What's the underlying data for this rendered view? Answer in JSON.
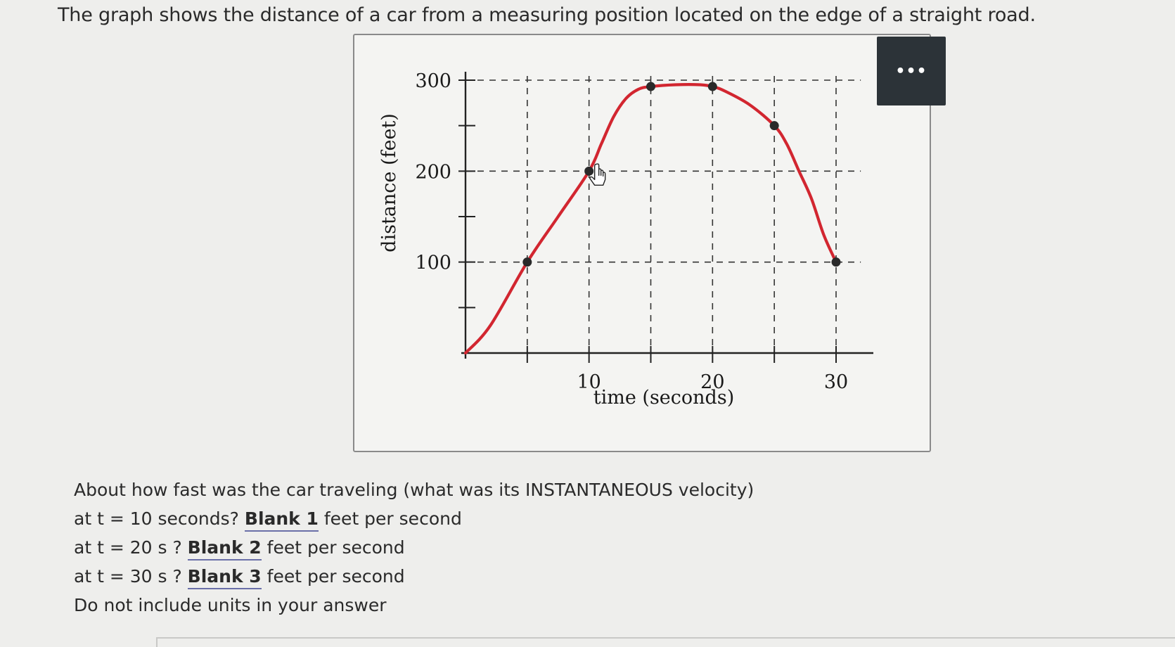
{
  "intro_text": "The graph shows the distance of a car from a measuring position located on the edge of a straight road.",
  "more_button_label": "•••",
  "chart_data": {
    "type": "line",
    "xlabel": "time (seconds)",
    "ylabel": "distance (feet)",
    "x_ticks": [
      5,
      10,
      15,
      20,
      25,
      30
    ],
    "x_tick_labels": [
      "10",
      "20",
      "30"
    ],
    "x_tick_label_values": [
      10,
      20,
      30
    ],
    "y_ticks": [
      50,
      100,
      150,
      200,
      250,
      300
    ],
    "y_tick_labels": [
      "100",
      "200",
      "300"
    ],
    "y_tick_label_values": [
      100,
      200,
      300
    ],
    "xlim": [
      0,
      32
    ],
    "ylim": [
      0,
      300
    ],
    "grid": "dashed",
    "curve_color": "#d22630",
    "curve": {
      "x": [
        0,
        2,
        5,
        7.5,
        10,
        11,
        12,
        13,
        14,
        15,
        17,
        19,
        20,
        21,
        23,
        25,
        26,
        27,
        28,
        29,
        30
      ],
      "y": [
        0,
        30,
        100,
        150,
        200,
        230,
        260,
        280,
        290,
        293,
        295,
        295,
        293,
        288,
        273,
        250,
        230,
        200,
        170,
        130,
        100
      ]
    },
    "marked_points": {
      "x": [
        5,
        10,
        15,
        20,
        25,
        30
      ],
      "y": [
        100,
        200,
        293,
        293,
        250,
        100
      ]
    }
  },
  "questions": {
    "prompt": "About how fast was the car traveling (what was its INSTANTANEOUS velocity)",
    "items": [
      {
        "prefix": "at t = 10 seconds?",
        "blank": "Blank 1",
        "suffix": "feet per second"
      },
      {
        "prefix": "at t = 20 s ?",
        "blank": "Blank 2",
        "suffix": "feet per second"
      },
      {
        "prefix": "at t = 30 s ?",
        "blank": "Blank 3",
        "suffix": "feet per second"
      }
    ],
    "note": "Do not include units in your answer"
  }
}
